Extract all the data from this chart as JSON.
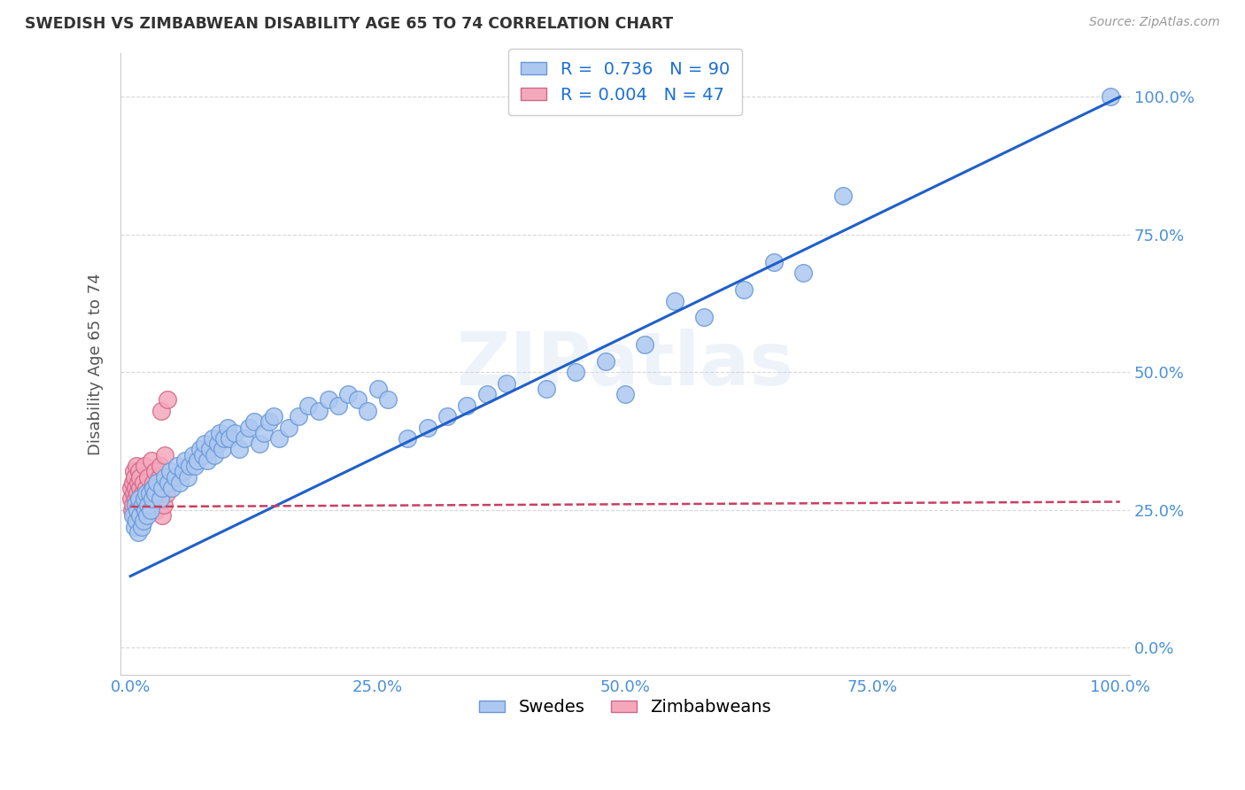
{
  "title": "SWEDISH VS ZIMBABWEAN DISABILITY AGE 65 TO 74 CORRELATION CHART",
  "source": "Source: ZipAtlas.com",
  "ylabel": "Disability Age 65 to 74",
  "xlim": [
    -0.01,
    1.01
  ],
  "ylim": [
    -0.05,
    1.08
  ],
  "xticks": [
    0.0,
    0.25,
    0.5,
    0.75,
    1.0
  ],
  "yticks": [
    0.0,
    0.25,
    0.5,
    0.75,
    1.0
  ],
  "xtick_labels": [
    "0.0%",
    "25.0%",
    "50.0%",
    "75.0%",
    "100.0%"
  ],
  "ytick_labels": [
    "0.0%",
    "25.0%",
    "50.0%",
    "75.0%",
    "100.0%"
  ],
  "swedes_color": "#adc8f0",
  "zimbabweans_color": "#f5a8bc",
  "swedes_edge": "#6898d8",
  "zimbabweans_edge": "#d06888",
  "trend_blue": "#2060c8",
  "trend_pink": "#c84060",
  "R_swedes": 0.736,
  "N_swedes": 90,
  "R_zimbabweans": 0.004,
  "N_zimbabweans": 47,
  "legend_text_color": "#1a6fd4",
  "watermark": "ZIPatlas",
  "blue_trend_x0": 0.0,
  "blue_trend_y0": 0.13,
  "blue_trend_x1": 1.0,
  "blue_trend_y1": 1.0,
  "pink_trend_x0": 0.0,
  "pink_trend_y0": 0.256,
  "pink_trend_x1": 1.0,
  "pink_trend_y1": 0.265,
  "swedes_x": [
    0.002,
    0.004,
    0.005,
    0.006,
    0.007,
    0.008,
    0.009,
    0.01,
    0.011,
    0.012,
    0.013,
    0.014,
    0.015,
    0.016,
    0.017,
    0.018,
    0.019,
    0.02,
    0.022,
    0.023,
    0.025,
    0.027,
    0.03,
    0.032,
    0.035,
    0.038,
    0.04,
    0.042,
    0.045,
    0.047,
    0.05,
    0.053,
    0.055,
    0.058,
    0.06,
    0.063,
    0.065,
    0.068,
    0.07,
    0.073,
    0.075,
    0.078,
    0.08,
    0.083,
    0.085,
    0.088,
    0.09,
    0.093,
    0.095,
    0.098,
    0.1,
    0.105,
    0.11,
    0.115,
    0.12,
    0.125,
    0.13,
    0.135,
    0.14,
    0.145,
    0.15,
    0.16,
    0.17,
    0.18,
    0.19,
    0.2,
    0.21,
    0.22,
    0.23,
    0.24,
    0.25,
    0.26,
    0.28,
    0.3,
    0.32,
    0.34,
    0.36,
    0.38,
    0.42,
    0.45,
    0.48,
    0.5,
    0.52,
    0.55,
    0.58,
    0.62,
    0.65,
    0.68,
    0.72,
    0.99
  ],
  "swedes_y": [
    0.24,
    0.22,
    0.26,
    0.23,
    0.25,
    0.21,
    0.27,
    0.24,
    0.22,
    0.26,
    0.23,
    0.27,
    0.25,
    0.28,
    0.24,
    0.26,
    0.28,
    0.25,
    0.27,
    0.29,
    0.28,
    0.3,
    0.27,
    0.29,
    0.31,
    0.3,
    0.32,
    0.29,
    0.31,
    0.33,
    0.3,
    0.32,
    0.34,
    0.31,
    0.33,
    0.35,
    0.33,
    0.34,
    0.36,
    0.35,
    0.37,
    0.34,
    0.36,
    0.38,
    0.35,
    0.37,
    0.39,
    0.36,
    0.38,
    0.4,
    0.38,
    0.39,
    0.36,
    0.38,
    0.4,
    0.41,
    0.37,
    0.39,
    0.41,
    0.42,
    0.38,
    0.4,
    0.42,
    0.44,
    0.43,
    0.45,
    0.44,
    0.46,
    0.45,
    0.43,
    0.47,
    0.45,
    0.38,
    0.4,
    0.42,
    0.44,
    0.46,
    0.48,
    0.47,
    0.5,
    0.52,
    0.46,
    0.55,
    0.63,
    0.6,
    0.65,
    0.7,
    0.68,
    0.82,
    1.0
  ],
  "zimbabweans_x": [
    0.0005,
    0.001,
    0.0015,
    0.002,
    0.0025,
    0.003,
    0.0035,
    0.004,
    0.0045,
    0.005,
    0.0055,
    0.006,
    0.0065,
    0.007,
    0.0075,
    0.008,
    0.0085,
    0.009,
    0.0095,
    0.01,
    0.011,
    0.012,
    0.013,
    0.014,
    0.015,
    0.016,
    0.017,
    0.018,
    0.019,
    0.02,
    0.021,
    0.022,
    0.023,
    0.024,
    0.025,
    0.026,
    0.027,
    0.028,
    0.029,
    0.03,
    0.031,
    0.032,
    0.033,
    0.034,
    0.035,
    0.036,
    0.037
  ],
  "zimbabweans_y": [
    0.27,
    0.29,
    0.25,
    0.3,
    0.26,
    0.28,
    0.32,
    0.24,
    0.31,
    0.27,
    0.29,
    0.33,
    0.25,
    0.28,
    0.3,
    0.26,
    0.32,
    0.27,
    0.29,
    0.31,
    0.25,
    0.28,
    0.3,
    0.33,
    0.26,
    0.29,
    0.27,
    0.31,
    0.25,
    0.28,
    0.34,
    0.26,
    0.3,
    0.28,
    0.32,
    0.25,
    0.29,
    0.27,
    0.31,
    0.33,
    0.43,
    0.24,
    0.3,
    0.26,
    0.35,
    0.28,
    0.45
  ],
  "background_color": "#ffffff",
  "grid_color": "#d8d8d8"
}
